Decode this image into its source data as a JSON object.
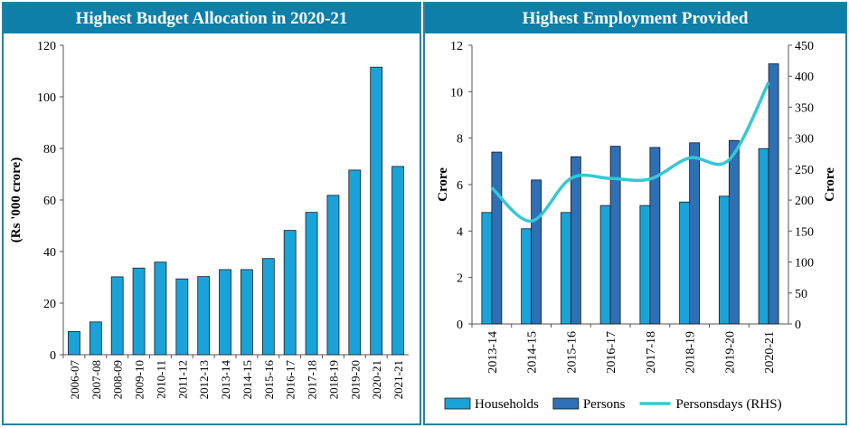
{
  "chart_data": [
    {
      "type": "bar",
      "title": "Highest Budget Allocation in 2020-21",
      "ylabel": "(Rs '000 crore)",
      "ylim": [
        0,
        120
      ],
      "yticks": [
        "0",
        "20",
        "40",
        "60",
        "80",
        "100",
        "120"
      ],
      "categories": [
        "2006-07",
        "2007-08",
        "2008-09",
        "2009-10",
        "2010-11",
        "2011-12",
        "2012-13",
        "2013-14",
        "2014-15",
        "2015-16",
        "2016-17",
        "2017-18",
        "2018-19",
        "2019-20",
        "2020-21",
        "2021-21"
      ],
      "values": [
        9,
        12.7,
        30.2,
        33.6,
        35.9,
        29.4,
        30.3,
        33,
        33,
        37.3,
        48.2,
        55.2,
        61.8,
        71.6,
        111.5,
        73
      ],
      "color": "#1aa3d9",
      "grid": false
    },
    {
      "type": "bar",
      "title": "Highest Employment Provided",
      "ylabel": "Crore",
      "y2label": "Crore",
      "ylim": [
        0,
        12
      ],
      "y2lim": [
        0,
        450
      ],
      "yticks": [
        "0",
        "2",
        "4",
        "6",
        "8",
        "10",
        "12"
      ],
      "y2ticks": [
        "0",
        "50",
        "100",
        "150",
        "200",
        "250",
        "300",
        "350",
        "400",
        "450"
      ],
      "categories": [
        "2013-14",
        "2014-15",
        "2015-16",
        "2016-17",
        "2017-18",
        "2018-19",
        "2019-20",
        "2020-21"
      ],
      "series": [
        {
          "name": "Households",
          "type": "bar",
          "color": "#1aa3d9",
          "values": [
            4.8,
            4.1,
            4.8,
            5.1,
            5.1,
            5.25,
            5.5,
            7.55
          ]
        },
        {
          "name": "Persons",
          "type": "bar",
          "color": "#2e6fb5",
          "values": [
            7.4,
            6.2,
            7.2,
            7.65,
            7.6,
            7.8,
            7.9,
            11.2
          ]
        },
        {
          "name": "Personsdays (RHS)",
          "type": "line",
          "axis": "right",
          "color": "#35c8d4",
          "values": [
            220,
            166,
            235,
            235,
            234,
            268,
            265,
            390
          ]
        }
      ],
      "legend_position": "bottom",
      "grid": false
    }
  ]
}
